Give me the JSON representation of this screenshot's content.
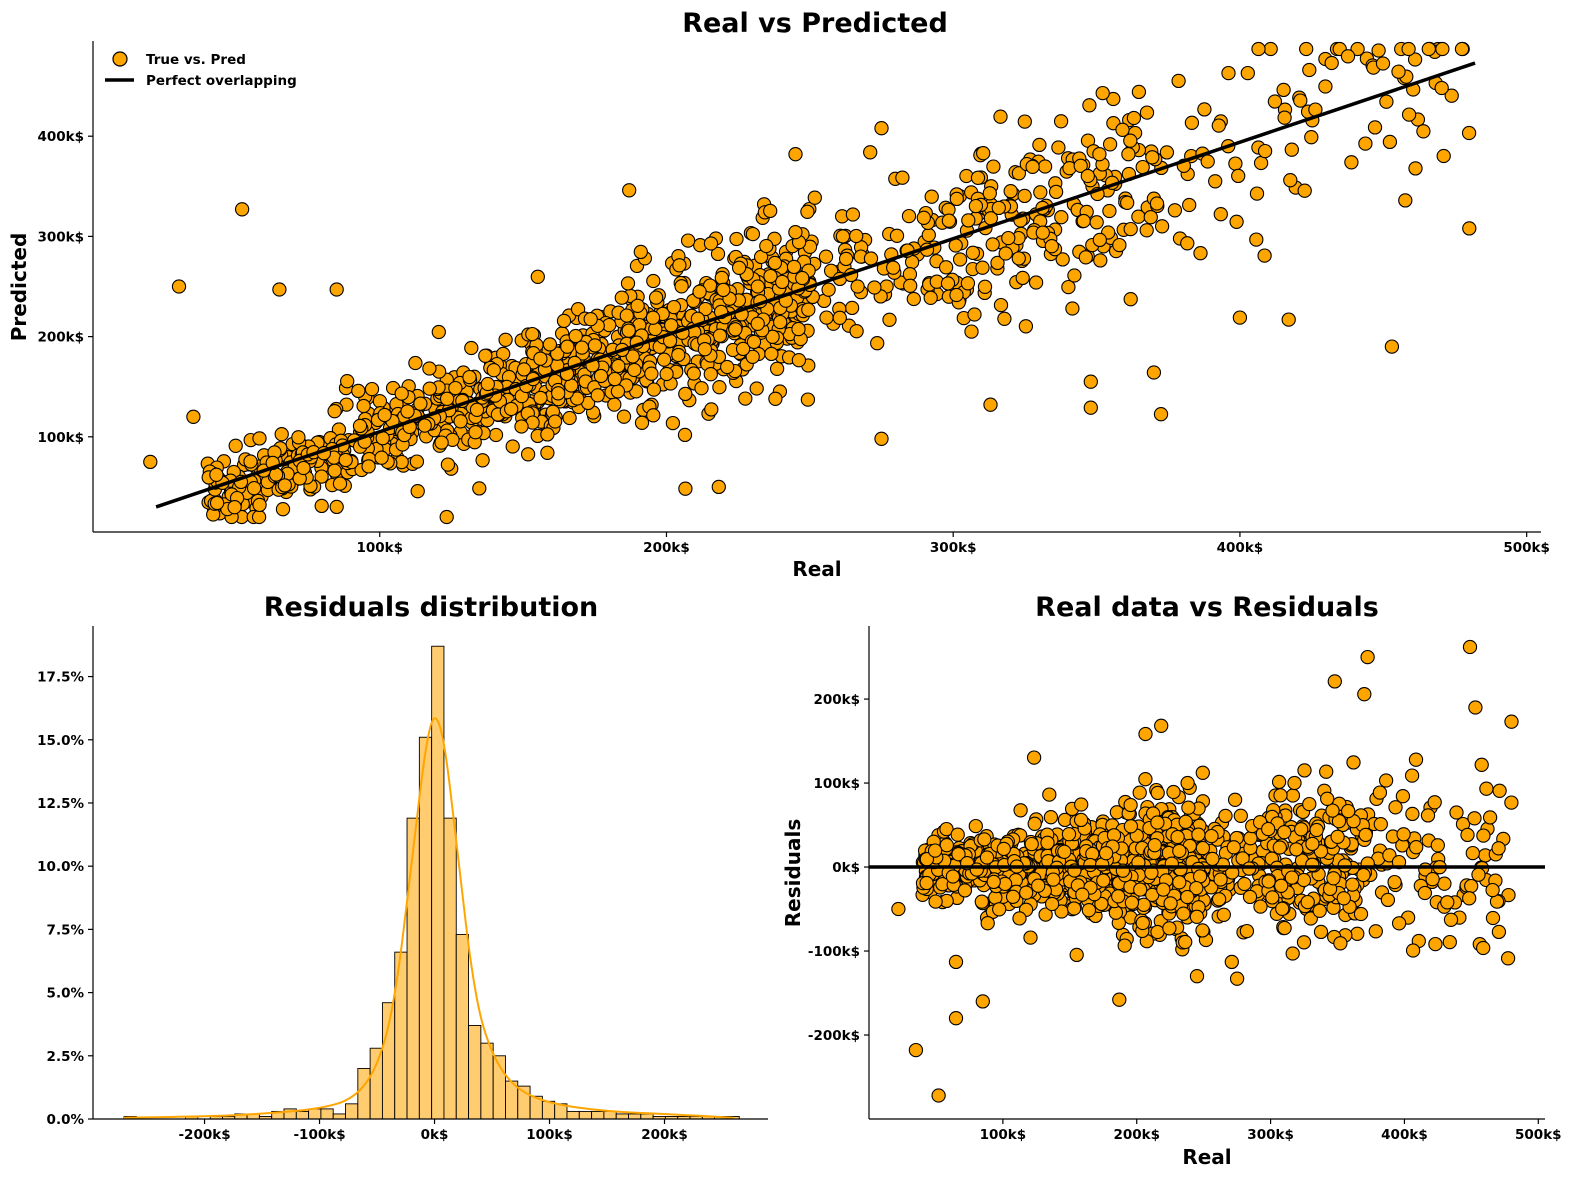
{
  "colors": {
    "point_fill": "#FFA500",
    "point_edge": "#000000",
    "bar_fill": "#FFCC70",
    "kde_line": "#FFA500",
    "line": "#000000"
  },
  "chart_data": [
    {
      "id": "real-vs-predicted",
      "type": "scatter",
      "title": "Real vs Predicted",
      "xlabel": "Real",
      "ylabel": "Predicted",
      "xlim": [
        0,
        505000
      ],
      "ylim": [
        5000,
        495000
      ],
      "xticks": [
        100000,
        200000,
        300000,
        400000,
        500000
      ],
      "xtick_labels": [
        "100k$",
        "200k$",
        "300k$",
        "400k$",
        "500k$"
      ],
      "yticks": [
        100000,
        200000,
        300000,
        400000
      ],
      "ytick_labels": [
        "100k$",
        "200k$",
        "300k$",
        "400k$"
      ],
      "legend": {
        "position": "top-left",
        "entries": [
          "True vs. Pred",
          "Perfect overlapping"
        ]
      },
      "series": [
        {
          "name": "True vs. Pred",
          "kind": "scatter",
          "n_points_approx": 1460,
          "outliers": [
            [
              30000,
              250000
            ],
            [
              35000,
              120000
            ],
            [
              52000,
              327000
            ],
            [
              65000,
              247000
            ],
            [
              85000,
              247000
            ],
            [
              85000,
              30000
            ],
            [
              187000,
              346000
            ],
            [
              245000,
              382000
            ],
            [
              275000,
              408000
            ],
            [
              275000,
              98000
            ],
            [
              313000,
              132000
            ],
            [
              348000,
              155000
            ],
            [
              348000,
              129000
            ],
            [
              396000,
              463000
            ],
            [
              432000,
              473000
            ],
            [
              480000,
              308000
            ],
            [
              453000,
              190000
            ],
            [
              400000,
              219000
            ],
            [
              417000,
              217000
            ],
            [
              20000,
              75000
            ]
          ]
        },
        {
          "name": "Perfect overlapping",
          "kind": "line",
          "x": [
            22000,
            482000
          ],
          "y": [
            30000,
            473000
          ]
        }
      ]
    },
    {
      "id": "residuals-distribution",
      "type": "bar",
      "title": "Residuals distribution",
      "xlim": [
        -297000,
        290000
      ],
      "ylim": [
        0,
        0.195
      ],
      "xticks": [
        -200000,
        -100000,
        0,
        100000,
        200000
      ],
      "xtick_labels": [
        "-200k$",
        "-100k$",
        "0k$",
        "100k$",
        "200k$"
      ],
      "yticks": [
        0,
        0.025,
        0.05,
        0.075,
        0.1,
        0.125,
        0.15,
        0.175
      ],
      "ytick_labels": [
        "0.0%",
        "2.5%",
        "5.0%",
        "7.5%",
        "10.0%",
        "12.5%",
        "15.0%",
        "17.5%"
      ],
      "bin_start": -270000,
      "bin_width": 10700,
      "values": [
        0.001,
        0,
        0,
        0,
        0,
        0.001,
        0,
        0.001,
        0.001,
        0.002,
        0.002,
        0.001,
        0.003,
        0.004,
        0.003,
        0.004,
        0.004,
        0.002,
        0.006,
        0.02,
        0.028,
        0.046,
        0.066,
        0.119,
        0.151,
        0.187,
        0.119,
        0.073,
        0.037,
        0.03,
        0.025,
        0.015,
        0.013,
        0.009,
        0.007,
        0.006,
        0.003,
        0.003,
        0.003,
        0.003,
        0.002,
        0.002,
        0.002,
        0.001,
        0.001,
        0.001,
        0.001,
        0.001,
        0.001,
        0.001
      ],
      "kde": {
        "x": [
          -270000,
          -200000,
          -150000,
          -100000,
          -70000,
          -50000,
          -35000,
          -20000,
          -10000,
          -3000,
          3000,
          10000,
          20000,
          35000,
          50000,
          70000,
          100000,
          150000,
          200000,
          260000
        ],
        "y": [
          0.0005,
          0.001,
          0.002,
          0.004,
          0.008,
          0.02,
          0.045,
          0.1,
          0.14,
          0.158,
          0.159,
          0.145,
          0.105,
          0.048,
          0.025,
          0.012,
          0.006,
          0.003,
          0.002,
          0.0005
        ]
      }
    },
    {
      "id": "real-vs-residuals",
      "type": "scatter",
      "title": "Real data vs Residuals",
      "xlabel": "Real",
      "ylabel": "Residuals",
      "xlim": [
        0,
        505000
      ],
      "ylim": [
        -300000,
        287000
      ],
      "xticks": [
        100000,
        200000,
        300000,
        400000,
        500000
      ],
      "xtick_labels": [
        "100k$",
        "200k$",
        "300k$",
        "400k$",
        "500k$"
      ],
      "yticks": [
        -200000,
        -100000,
        0,
        100000,
        200000
      ],
      "ytick_labels": [
        "-200k$",
        "-100k$",
        "0k$",
        "100k$",
        "200k$"
      ],
      "series": [
        {
          "name": "residuals",
          "kind": "scatter",
          "n_points_approx": 1460,
          "outliers": [
            [
              35000,
              -218000
            ],
            [
              52000,
              -272000
            ],
            [
              65000,
              -180000
            ],
            [
              65000,
              -113000
            ],
            [
              85000,
              -160000
            ],
            [
              187000,
              -158000
            ],
            [
              245000,
              -130000
            ],
            [
              275000,
              -133000
            ],
            [
              348000,
              221000
            ],
            [
              396000,
              -67000
            ],
            [
              432000,
              -42000
            ],
            [
              449000,
              262000
            ],
            [
              480000,
              173000
            ],
            [
              453000,
              190000
            ],
            [
              22000,
              -50000
            ]
          ]
        },
        {
          "name": "zero line",
          "kind": "hline",
          "y": 0
        }
      ]
    }
  ]
}
